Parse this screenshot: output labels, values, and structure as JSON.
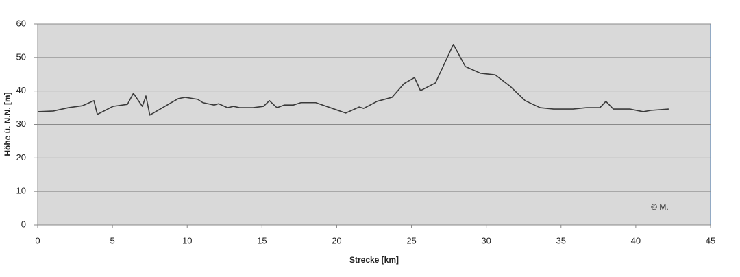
{
  "chart_data": {
    "type": "line",
    "x_label": "Strecke [km]",
    "y_label": "Höhe ü. N.N. [m]",
    "annotation": "© M.",
    "xlim": [
      0,
      45
    ],
    "xticks": [
      0,
      5,
      10,
      15,
      20,
      25,
      30,
      35,
      40,
      45
    ],
    "ylim": [
      0,
      60
    ],
    "yticks": [
      0,
      10,
      20,
      30,
      40,
      50,
      60
    ],
    "grid": true,
    "series": [
      {
        "color": "#3a3a3a",
        "x": [
          0,
          1.05,
          2.06,
          3,
          3.76,
          3.99,
          5.04,
          6,
          6.4,
          7,
          7.24,
          7.5,
          9.4,
          9.86,
          10.7,
          11.05,
          11.8,
          12.1,
          12.7,
          13.1,
          13.5,
          14.4,
          15.1,
          15.5,
          16,
          16.5,
          17.1,
          17.6,
          18.6,
          19.7,
          20.6,
          21.5,
          21.8,
          22.7,
          23.7,
          24.5,
          25.2,
          25.6,
          26.6,
          27.8,
          28.6,
          29.6,
          30.6,
          31.6,
          32.6,
          33.6,
          34.5,
          35.8,
          36.7,
          37.6,
          38,
          38.5,
          39.6,
          40.5,
          41,
          42.2
        ],
        "values": [
          33.8,
          34,
          35,
          35.6,
          37.1,
          33,
          35.4,
          36,
          39.3,
          35.4,
          38.5,
          32.8,
          37.7,
          38.1,
          37.5,
          36.5,
          35.8,
          36.2,
          35,
          35.4,
          35,
          35,
          35.4,
          37.1,
          35,
          35.8,
          35.8,
          36.5,
          36.5,
          34.8,
          33.4,
          35.2,
          34.8,
          36.9,
          38.1,
          42.2,
          44,
          40.1,
          42.4,
          53.9,
          47.3,
          45.3,
          44.8,
          41.4,
          37.1,
          35,
          34.6,
          34.6,
          35,
          35,
          36.9,
          34.6,
          34.6,
          33.8,
          34.2,
          34.6
        ]
      }
    ]
  }
}
